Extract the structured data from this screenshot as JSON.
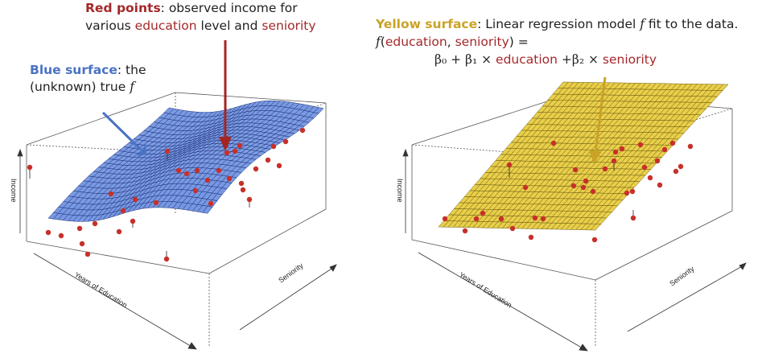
{
  "annotations": {
    "red_title": "Red points",
    "red_text1": ": observed income for",
    "red_text2_a": "various ",
    "red_text2_edu": "education",
    "red_text2_b": " level and ",
    "red_text2_sen": "seniority",
    "blue_title": "Blue surface",
    "blue_text1": ": the",
    "blue_text2": "(unknown) true ",
    "f_symbol": "f",
    "yellow_title": "Yellow surface",
    "yellow_text1": ": Linear regression model ",
    "yellow_text1b": " fit to the data.",
    "formula_f": "f",
    "formula_open": "(",
    "formula_edu": "education",
    "formula_comma": ", ",
    "formula_sen": "seniority",
    "formula_close": ") =",
    "beta0": "β₀ + β₁ × ",
    "beta_edu": "education",
    "beta2": " +β₂ × ",
    "beta_sen": "seniority"
  },
  "left_plot": {
    "z_label": "Income",
    "x_label": "Years of Education",
    "y_label": "Seniority",
    "surface_color": "#5b7fd6"
  },
  "right_plot": {
    "z_label": "Income",
    "x_label": "Years of Education",
    "y_label": "Seniority",
    "surface_color": "#e6c93b"
  },
  "colors": {
    "points": "#c7302a",
    "red_arrow": "#a42422",
    "blue_arrow": "#4a72c4",
    "yellow_arrow": "#c9a227"
  }
}
